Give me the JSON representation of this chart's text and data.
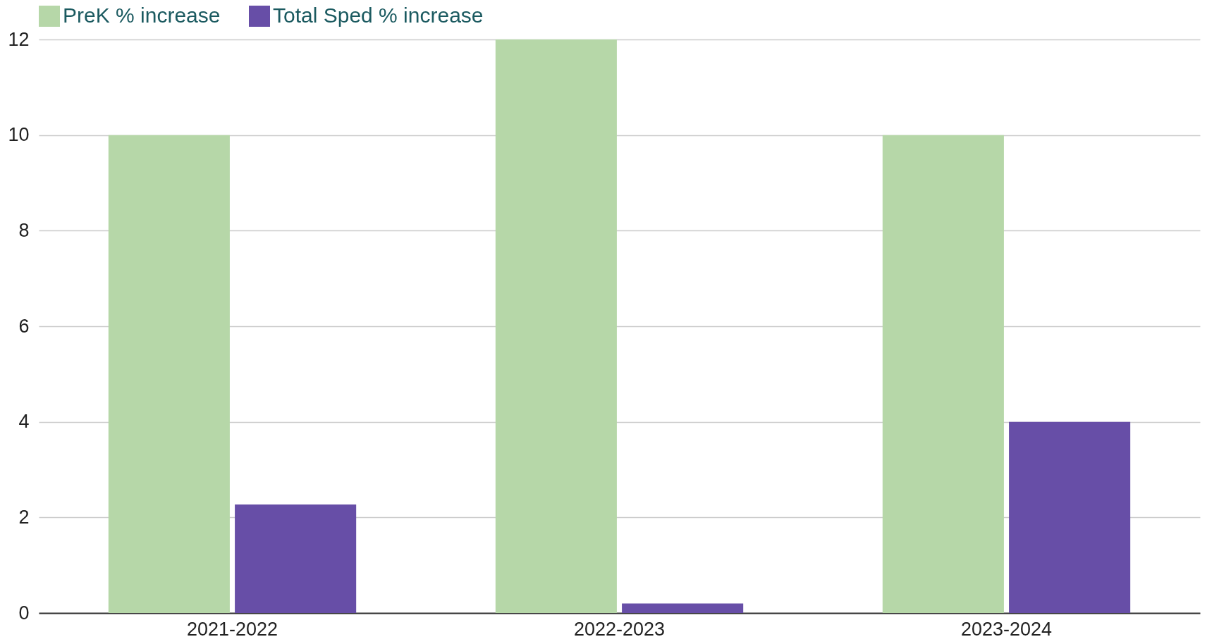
{
  "chart_data": {
    "type": "bar",
    "categories": [
      "2021-2022",
      "2022-2023",
      "2023-2024"
    ],
    "series": [
      {
        "name": "PreK % increase",
        "color": "#b6d7a8",
        "values": [
          10,
          12,
          10
        ]
      },
      {
        "name": "Total Sped % increase",
        "color": "#674ea7",
        "values": [
          2.27,
          0.2,
          4
        ]
      }
    ],
    "ylim": [
      0,
      12
    ],
    "yticks": [
      0,
      2,
      4,
      6,
      8,
      10,
      12
    ],
    "grid": "y",
    "legend": "top"
  }
}
